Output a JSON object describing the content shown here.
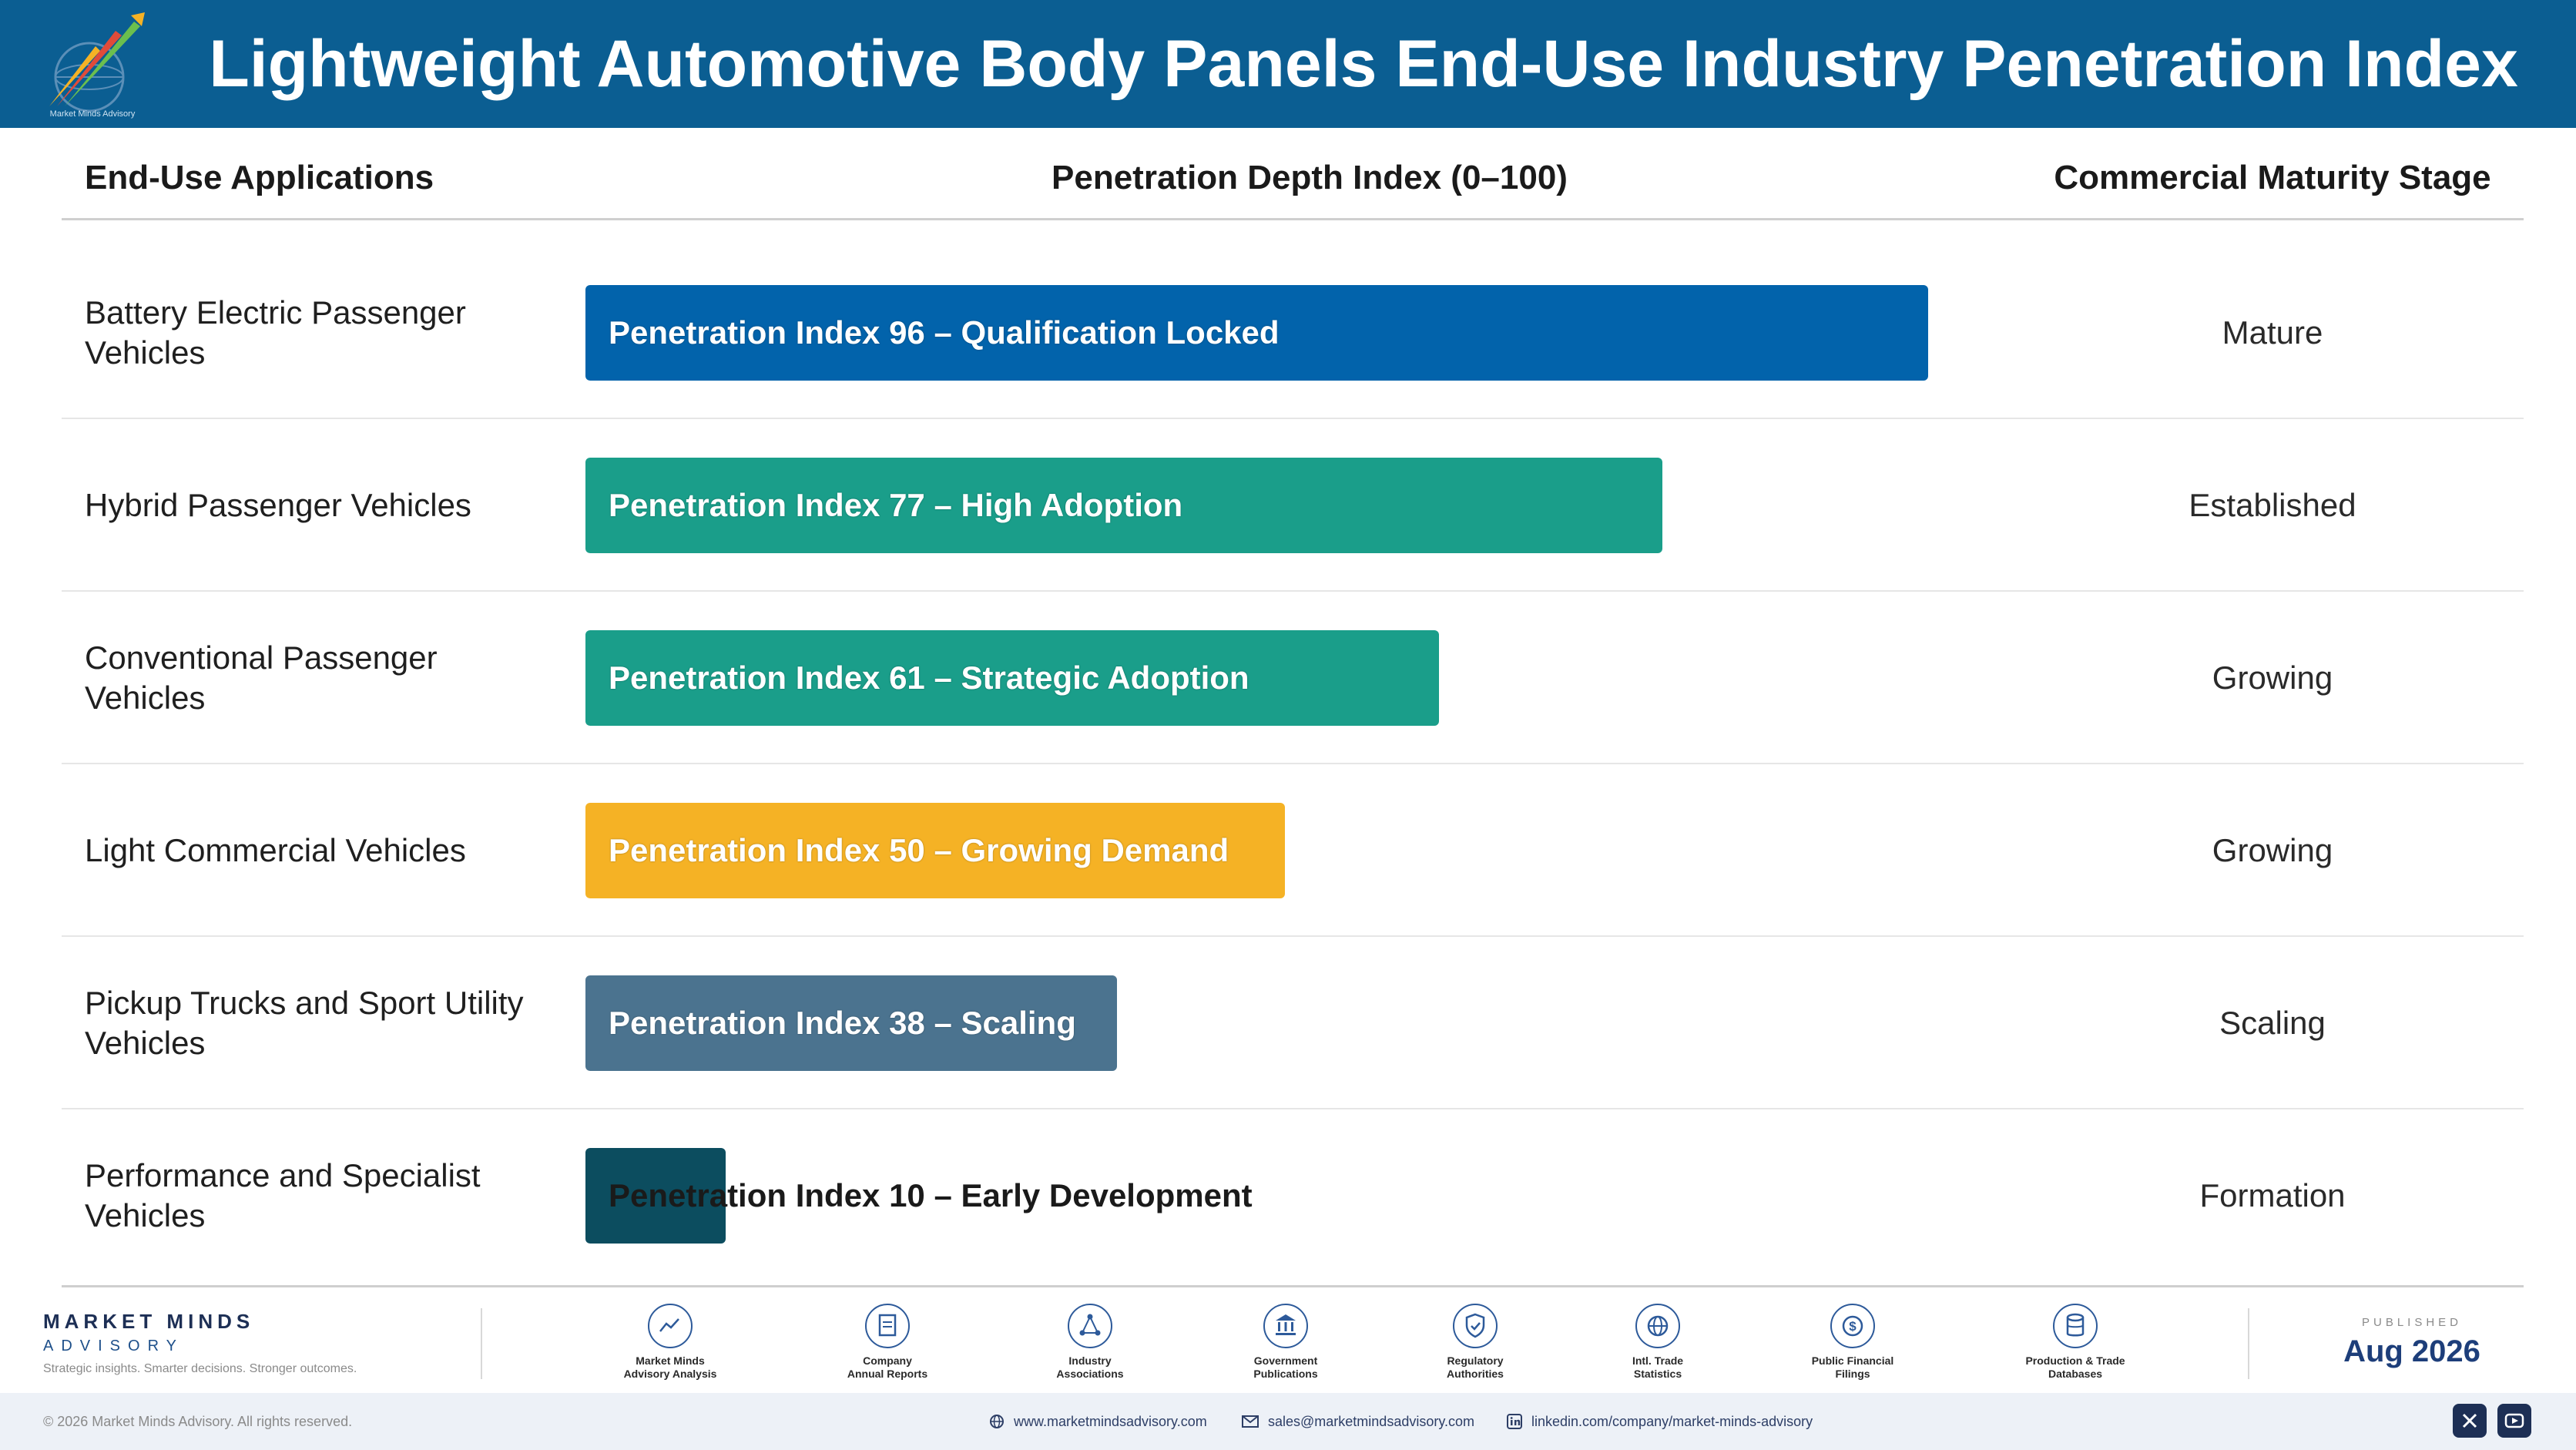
{
  "header": {
    "title": "Lightweight Automotive Body Panels End-Use Industry Penetration Index",
    "logo_text": "Market Minds Advisory"
  },
  "columns": {
    "application": "End-Use Applications",
    "depth": "Penetration Depth Index (0–100)",
    "stage": "Commercial Maturity Stage"
  },
  "chart_data": {
    "type": "bar",
    "orientation": "horizontal",
    "xlim": [
      0,
      100
    ],
    "categories": [
      "Battery Electric Passenger Vehicles",
      "Hybrid Passenger Vehicles",
      "Conventional Passenger Vehicles",
      "Light Commercial Vehicles",
      "Pickup Trucks and Sport Utility Vehicles",
      "Performance and Specialist Vehicles"
    ],
    "values": [
      96,
      77,
      61,
      50,
      38,
      10
    ],
    "bar_labels": [
      "Penetration Index 96 – Qualification Locked",
      "Penetration Index 77 – High Adoption",
      "Penetration Index 61 – Strategic Adoption",
      "Penetration Index 50 – Growing Demand",
      "Penetration Index 38 – Scaling",
      "Penetration Index 10 – Early Development"
    ],
    "stages": [
      "Mature",
      "Established",
      "Growing",
      "Growing",
      "Scaling",
      "Formation"
    ],
    "colors": [
      "#0263ab",
      "#1a9e8a",
      "#1a9e8a",
      "#f5b225",
      "#4b738f",
      "#0c4d5f"
    ]
  },
  "footer": {
    "brand_name": "MARKET MINDS",
    "brand_sub": "ADVISORY",
    "brand_tagline": "Strategic insights. Smarter decisions. Stronger outcomes.",
    "sources": [
      {
        "line1": "Market Minds",
        "line2": "Advisory Analysis",
        "icon": "chart-line-icon"
      },
      {
        "line1": "Company",
        "line2": "Annual Reports",
        "icon": "document-icon"
      },
      {
        "line1": "Industry",
        "line2": "Associations",
        "icon": "network-icon"
      },
      {
        "line1": "Government",
        "line2": "Publications",
        "icon": "government-building-icon"
      },
      {
        "line1": "Regulatory",
        "line2": "Authorities",
        "icon": "shield-check-icon"
      },
      {
        "line1": "Intl. Trade",
        "line2": "Statistics",
        "icon": "globe-icon"
      },
      {
        "line1": "Public Financial",
        "line2": "Filings",
        "icon": "dollar-coin-icon"
      },
      {
        "line1": "Production & Trade",
        "line2": "Databases",
        "icon": "database-icon"
      }
    ],
    "published_label": "PUBLISHED",
    "published_date": "Aug 2026",
    "copyright": "© 2026 Market Minds Advisory. All rights reserved.",
    "website": "www.marketmindsadvisory.com",
    "email": "sales@marketmindsadvisory.com",
    "linkedin": "linkedin.com/company/market-minds-advisory"
  }
}
